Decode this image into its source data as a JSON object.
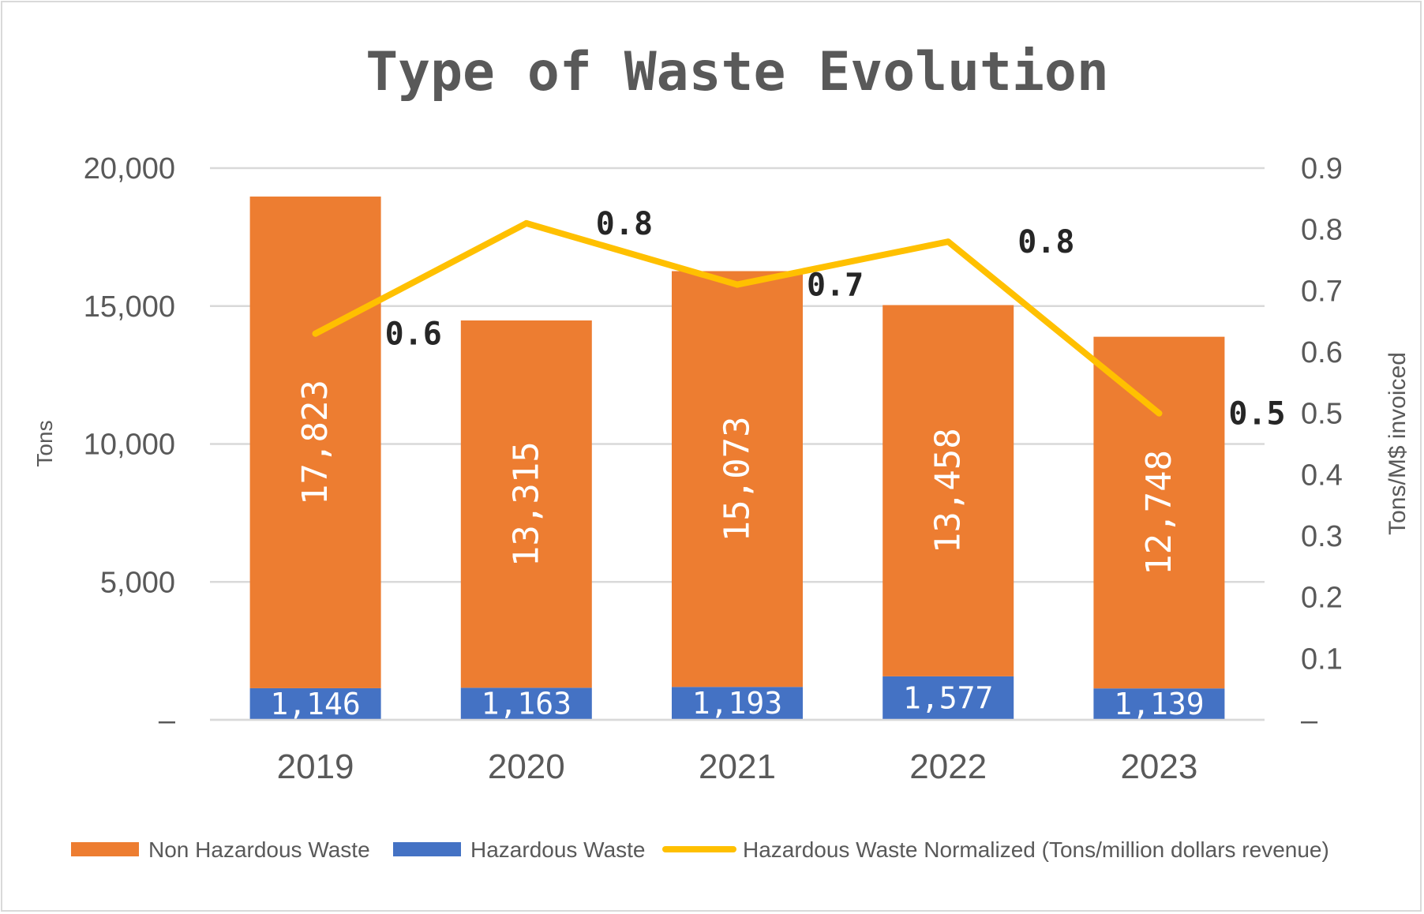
{
  "chart_data": {
    "type": "bar",
    "title": "Type of Waste Evolution",
    "categories": [
      "2019",
      "2020",
      "2021",
      "2022",
      "2023"
    ],
    "ylabel": "Tons",
    "y2label": "Tons/M$ invoiced",
    "ylim": [
      0,
      20000
    ],
    "y2lim": [
      0,
      0.9
    ],
    "yticks": [
      "–",
      "5,000",
      "10,000",
      "15,000",
      "20,000"
    ],
    "y2ticks": [
      "–",
      "0.1",
      "0.2",
      "0.3",
      "0.4",
      "0.5",
      "0.6",
      "0.7",
      "0.8",
      "0.9"
    ],
    "grid": true,
    "legend_position": "bottom",
    "series": [
      {
        "name": "Non Hazardous Waste",
        "type": "bar",
        "stacked": true,
        "color": "#ED7D31",
        "values": [
          17823,
          13315,
          15073,
          13458,
          12748
        ],
        "labels": [
          "17,823",
          "13,315",
          "15,073",
          "13,458",
          "12,748"
        ]
      },
      {
        "name": "Hazardous Waste",
        "type": "bar",
        "stacked": true,
        "color": "#4472C4",
        "values": [
          1146,
          1163,
          1193,
          1577,
          1139
        ],
        "labels": [
          "1,146",
          "1,163",
          "1,193",
          "1,577",
          "1,139"
        ]
      },
      {
        "name": "Hazardous Waste Normalized (Tons/million dollars revenue)",
        "type": "line",
        "axis": "secondary",
        "color": "#FFC000",
        "values": [
          0.63,
          0.81,
          0.71,
          0.78,
          0.5
        ],
        "labels": [
          "0.6",
          "0.8",
          "0.7",
          "0.8",
          "0.5"
        ]
      }
    ]
  }
}
